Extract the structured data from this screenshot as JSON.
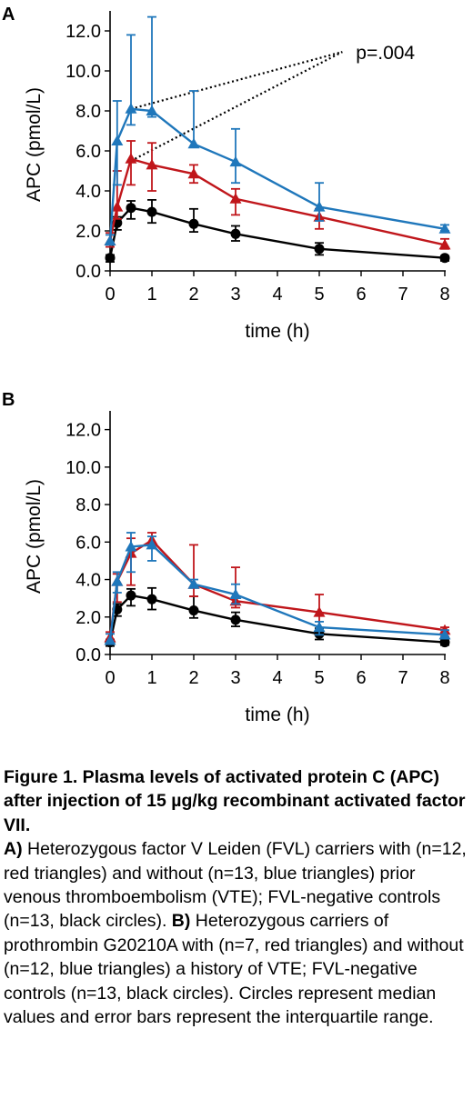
{
  "chart_data": [
    {
      "panel": "A",
      "type": "line",
      "x": [
        0,
        0.17,
        0.5,
        1,
        2,
        3,
        5,
        8
      ],
      "xlabel": "time (h)",
      "ylabel": "APC (pmol/L)",
      "xlim": [
        0,
        8
      ],
      "ylim": [
        0,
        13
      ],
      "xticks": [
        "0",
        "1",
        "2",
        "3",
        "4",
        "5",
        "6",
        "7",
        "8"
      ],
      "yticks": [
        "0.0",
        "2.0",
        "4.0",
        "6.0",
        "8.0",
        "10.0",
        "12.0"
      ],
      "grid": false,
      "series": [
        {
          "color": "#000000",
          "marker": "circle",
          "values": [
            0.65,
            2.4,
            3.15,
            2.95,
            2.35,
            1.85,
            1.1,
            0.65
          ],
          "err_low": [
            0.45,
            2.05,
            2.6,
            2.4,
            1.95,
            1.5,
            0.8,
            0.5
          ],
          "err_high": [
            0.8,
            2.7,
            3.5,
            3.55,
            3.1,
            2.25,
            1.4,
            0.75
          ]
        },
        {
          "color": "#c0161b",
          "marker": "triangle",
          "values": [
            1.5,
            3.2,
            5.6,
            5.3,
            4.85,
            3.6,
            2.7,
            1.3
          ],
          "err_low": [
            1.2,
            2.6,
            4.3,
            4.0,
            4.4,
            2.8,
            2.1,
            1.1
          ],
          "err_high": [
            1.9,
            5.0,
            6.5,
            6.4,
            5.3,
            4.1,
            3.1,
            1.6
          ]
        },
        {
          "color": "#1f77bb",
          "marker": "triangle",
          "values": [
            1.5,
            6.5,
            8.1,
            8.0,
            6.35,
            5.45,
            3.2,
            2.1
          ],
          "err_low": [
            1.3,
            4.3,
            7.3,
            7.7,
            6.2,
            4.4,
            2.5,
            2.0
          ],
          "err_high": [
            1.8,
            8.5,
            11.8,
            12.7,
            9.0,
            7.1,
            4.4,
            2.3
          ]
        }
      ],
      "annotation": {
        "text": "p=.004",
        "lines": [
          {
            "from": [
              0.5,
              8.1
            ],
            "to": [
              5.55,
              10.95
            ]
          },
          {
            "from": [
              0.5,
              5.5
            ],
            "to": [
              5.55,
              10.95
            ]
          }
        ]
      }
    },
    {
      "panel": "B",
      "type": "line",
      "x": [
        0,
        0.17,
        0.5,
        1,
        2,
        3,
        5,
        8
      ],
      "xlabel": "time (h)",
      "ylabel": "APC (pmol/L)",
      "xlim": [
        0,
        8
      ],
      "ylim": [
        0,
        13
      ],
      "xticks": [
        "0",
        "1",
        "2",
        "3",
        "4",
        "5",
        "6",
        "7",
        "8"
      ],
      "yticks": [
        "0.0",
        "2.0",
        "4.0",
        "6.0",
        "8.0",
        "10.0",
        "12.0"
      ],
      "grid": false,
      "series": [
        {
          "color": "#000000",
          "marker": "circle",
          "values": [
            0.65,
            2.4,
            3.15,
            2.95,
            2.35,
            1.85,
            1.1,
            0.65
          ],
          "err_low": [
            0.45,
            2.05,
            2.6,
            2.4,
            1.95,
            1.5,
            0.8,
            0.5
          ],
          "err_high": [
            0.8,
            2.7,
            3.5,
            3.55,
            3.1,
            2.25,
            1.4,
            0.75
          ]
        },
        {
          "color": "#c0161b",
          "marker": "triangle",
          "values": [
            0.9,
            3.9,
            5.4,
            6.1,
            3.75,
            2.85,
            2.25,
            1.3
          ],
          "err_low": [
            0.6,
            2.8,
            3.7,
            5.9,
            3.1,
            2.5,
            1.3,
            0.95
          ],
          "err_high": [
            1.2,
            4.3,
            6.2,
            6.5,
            5.85,
            4.65,
            3.2,
            1.45
          ]
        },
        {
          "color": "#1f77bb",
          "marker": "triangle",
          "values": [
            0.75,
            3.9,
            5.75,
            5.85,
            3.75,
            3.2,
            1.45,
            1.05
          ],
          "err_low": [
            0.55,
            3.3,
            4.4,
            5.0,
            3.6,
            2.7,
            1.05,
            0.85
          ],
          "err_high": [
            1.1,
            4.4,
            6.5,
            6.3,
            4.0,
            3.75,
            1.75,
            1.3
          ]
        }
      ]
    }
  ],
  "caption": {
    "title": "Figure 1. Plasma levels of activated protein C (APC) after injection of 15 µg/kg recombinant activated factor VII.",
    "part_a_label": "A)",
    "part_a_text": " Heterozygous factor V Leiden (FVL) carriers with (n=12, red triangles) and without (n=13, blue triangles) prior venous thromboembolism (VTE); FVL-negative controls (n=13, black circles). ",
    "part_b_label": "B)",
    "part_b_text": " Heterozygous carriers of prothrombin G20210A with (n=7, red triangles) and without (n=12, blue triangles) a history of VTE; FVL-negative controls (n=13, black circles). Circles represent median values and error bars represent the interquartile range."
  }
}
